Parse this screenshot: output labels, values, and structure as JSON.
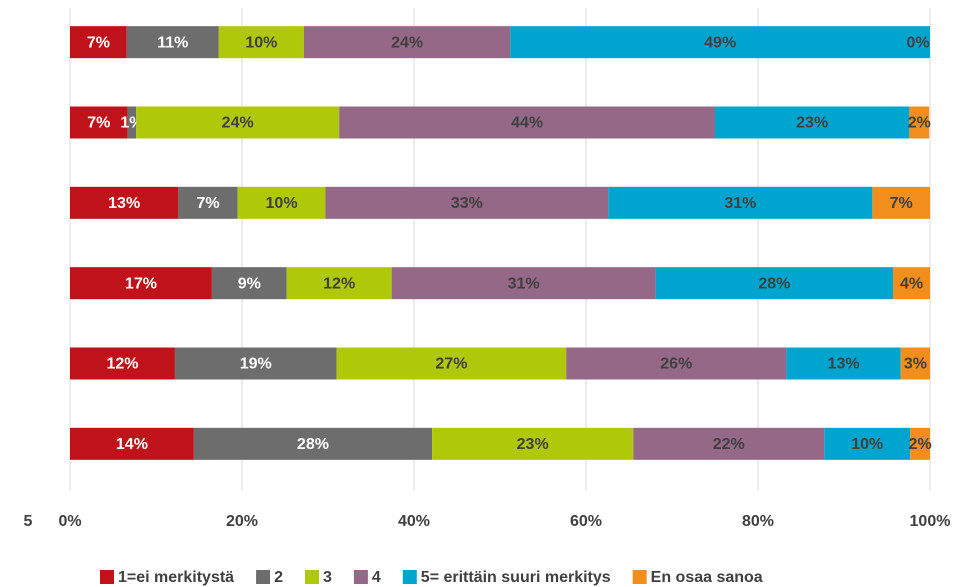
{
  "chart_data": {
    "type": "stacked_barh",
    "categories": [
      null,
      null,
      null,
      null,
      null,
      null
    ],
    "annotations": [
      "5"
    ],
    "series": [
      {
        "name": "1=ei merkitystä",
        "color": "#c0121a",
        "values": [
          6.6,
          6.7,
          12.6,
          16.5,
          12.2,
          14.4
        ],
        "value_labels": [
          "7%",
          "7%",
          "13%",
          "17%",
          "12%",
          "14%"
        ]
      },
      {
        "name": "2",
        "color": "#6d6d6d",
        "values": [
          10.7,
          1.0,
          6.9,
          8.7,
          18.8,
          27.7
        ],
        "value_labels": [
          "11%",
          "1%",
          "7%",
          "9%",
          "19%",
          "28%"
        ]
      },
      {
        "name": "3",
        "color": "#afc90a",
        "values": [
          9.9,
          23.6,
          10.2,
          12.2,
          26.7,
          23.4
        ],
        "value_labels": [
          "10%",
          "24%",
          "10%",
          "12%",
          "27%",
          "23%"
        ]
      },
      {
        "name": "4",
        "color": "#946886",
        "values": [
          24.0,
          43.7,
          32.9,
          30.7,
          25.6,
          22.2
        ],
        "value_labels": [
          "24%",
          "44%",
          "33%",
          "31%",
          "26%",
          "22%"
        ]
      },
      {
        "name": "5= erittäin suuri merkitys",
        "color": "#00a5cf",
        "values": [
          48.8,
          22.6,
          30.7,
          27.6,
          13.3,
          10.0
        ],
        "value_labels": [
          "49%",
          "23%",
          "31%",
          "28%",
          "13%",
          "10%"
        ]
      },
      {
        "name": "En osaa sanoa",
        "color": "#f18e1c",
        "values": [
          0,
          2.3,
          6.7,
          4.3,
          3.4,
          2.3
        ],
        "value_labels": [
          "0%",
          "2%",
          "7%",
          "4%",
          "3%",
          "2%"
        ]
      }
    ],
    "label_colors": [
      "#ffffff",
      "#ffffff",
      "#404040",
      "#404040",
      "#404040",
      "#404040"
    ],
    "xlim": [
      0,
      100
    ],
    "xticks": [
      {
        "value": 0,
        "label": "0%"
      },
      {
        "value": 20,
        "label": "20%"
      },
      {
        "value": 40,
        "label": "40%"
      },
      {
        "value": 60,
        "label": "60%"
      },
      {
        "value": 80,
        "label": "80%"
      },
      {
        "value": 100,
        "label": "100%"
      }
    ],
    "grid": true,
    "legend": "bottom"
  }
}
